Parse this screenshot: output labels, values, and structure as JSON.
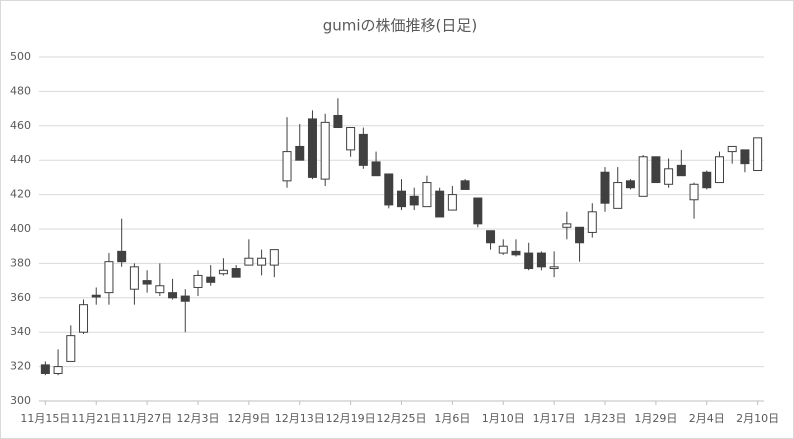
{
  "chart_data": {
    "type": "candlestick",
    "title": "gumiの株価推移(日足)",
    "categories": [
      "11月15日",
      null,
      null,
      null,
      "11月21日",
      null,
      null,
      null,
      "11月27日",
      null,
      null,
      null,
      "12月3日",
      null,
      null,
      null,
      "12月9日",
      null,
      null,
      null,
      "12月13日",
      null,
      null,
      null,
      "12月19日",
      null,
      null,
      null,
      "12月25日",
      null,
      null,
      null,
      "1月6日",
      null,
      null,
      null,
      "1月10日",
      null,
      null,
      null,
      "1月17日",
      null,
      null,
      null,
      "1月23日",
      null,
      null,
      null,
      "1月29日",
      null,
      null,
      null,
      "2月4日",
      null,
      null,
      null,
      "2月10日"
    ],
    "open": [
      321,
      316,
      323,
      340,
      361.5,
      363,
      387,
      365,
      370,
      363,
      363,
      361,
      366,
      372,
      374,
      377,
      379,
      379,
      379,
      428,
      448,
      464,
      429,
      466,
      446,
      455,
      439,
      432,
      422,
      419,
      413,
      422,
      411,
      428,
      418,
      399,
      386,
      387,
      386,
      386,
      377,
      401,
      401,
      398,
      433,
      412,
      428,
      419,
      442,
      426,
      437,
      417,
      433,
      427,
      445,
      446,
      434
    ],
    "high": [
      323,
      330,
      344,
      359,
      366,
      386,
      406,
      380,
      376,
      380,
      371,
      365,
      376,
      379,
      383,
      379,
      394,
      388,
      388,
      465,
      461,
      469,
      467,
      476,
      459,
      459,
      445,
      432,
      429,
      424,
      431,
      424,
      425,
      429,
      418,
      399,
      394,
      394,
      392,
      387,
      387,
      410,
      401,
      415,
      436,
      436,
      429,
      443,
      442,
      441,
      446,
      427,
      434,
      445,
      448,
      446,
      453
    ],
    "low": [
      315,
      315,
      323,
      339,
      356,
      356,
      378,
      356,
      363,
      361,
      359,
      340,
      361,
      367,
      373,
      372,
      379,
      373,
      372,
      424,
      440,
      429,
      425,
      459,
      442,
      435,
      431,
      412,
      411,
      411,
      413,
      407,
      411,
      423,
      401,
      388,
      385,
      384,
      376,
      376,
      372,
      394,
      381,
      395,
      410,
      412,
      423,
      419,
      427,
      424,
      431,
      406,
      423,
      427,
      438,
      433,
      434
    ],
    "close": [
      316,
      320,
      338,
      356,
      360.5,
      381,
      381,
      378,
      368,
      367,
      360,
      358,
      373,
      369,
      376,
      372,
      383,
      383,
      388,
      445,
      440,
      430,
      462,
      459,
      459,
      437,
      431,
      414,
      413,
      414,
      427,
      407,
      420,
      423,
      403,
      392,
      390,
      385,
      377,
      378,
      378,
      403,
      392,
      410,
      415,
      427,
      424,
      442,
      427,
      435,
      431,
      426,
      424,
      442,
      448,
      438,
      453
    ],
    "ylim": [
      300,
      500
    ],
    "yticks": [
      300,
      320,
      340,
      360,
      380,
      400,
      420,
      440,
      460,
      480,
      500
    ],
    "grid": true,
    "up_color": "#ffffff",
    "down_color": "#404040",
    "line_color": "#404040"
  }
}
